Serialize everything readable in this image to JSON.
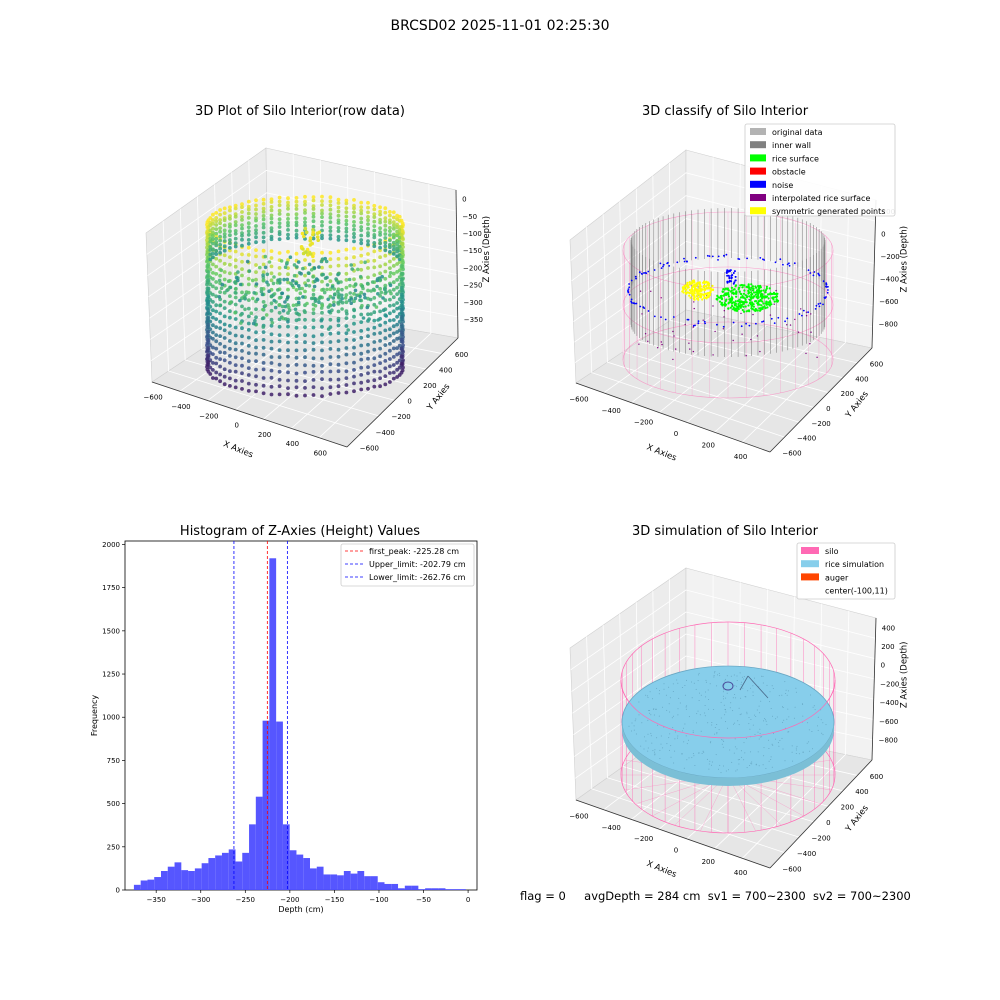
{
  "figure": {
    "suptitle": "BRCSD02 2025-11-01 02:25:30",
    "footer": {
      "flag": "flag = 0",
      "avg_depth": "avgDepth = 284 cm",
      "sv1": "sv1 = 700~2300",
      "sv2": "sv2 = 700~2300"
    }
  },
  "colors": {
    "original": "#b3b3b3",
    "inner_wall": "#808080",
    "rice_surface": "#00ff00",
    "obstacle": "#ff0000",
    "noise": "#0000ff",
    "interpolated": "#800080",
    "symmetric": "#ffff00",
    "silo": "#ff69b4",
    "rice_sim": "#87ceeb",
    "auger": "#ff4500",
    "hist_bar": "#4d4dff"
  },
  "chart_data": [
    {
      "type": "scatter",
      "subtype": "3d",
      "title": "3D Plot of Silo Interior(row data)",
      "xlabel": "X Axies",
      "ylabel": "Y Axies",
      "zlabel": "Z Axies (Depth)",
      "x_ticks": [
        "−600",
        "−400",
        "−200",
        "0",
        "200",
        "400",
        "600"
      ],
      "y_ticks": [
        "−600",
        "−400",
        "−200",
        "0",
        "200",
        "400",
        "600"
      ],
      "z_ticks": [
        "0",
        "−50",
        "−100",
        "−150",
        "−200",
        "−250",
        "−300",
        "−350"
      ],
      "xlim": [
        -650,
        650
      ],
      "ylim": [
        -650,
        650
      ],
      "zlim": [
        -380,
        10
      ],
      "colormap": "viridis"
    },
    {
      "type": "scatter",
      "subtype": "3d",
      "title": "3D classify of Silo Interior",
      "xlabel": "X Axies",
      "ylabel": "Y Axies",
      "zlabel": "Z Axies (Depth)",
      "x_ticks": [
        "−600",
        "−400",
        "−200",
        "0",
        "200",
        "400"
      ],
      "y_ticks": [
        "−600",
        "−400",
        "−200",
        "0",
        "200",
        "400",
        "600"
      ],
      "z_ticks": [
        "200",
        "0",
        "−200",
        "−400",
        "−600",
        "−800"
      ],
      "legend": [
        "original data",
        "inner wall",
        "rice surface",
        "obstacle",
        "noise",
        "interpolated rice surface",
        "symmetric generated points"
      ],
      "legend_position": "top-right"
    },
    {
      "type": "bar",
      "subtype": "histogram",
      "title": "Histogram of Z-Axies (Height) Values",
      "xlabel": "Depth (cm)",
      "ylabel": "Frequency",
      "xlim": [
        -385,
        10
      ],
      "ylim": [
        0,
        2020
      ],
      "x_ticks": [
        -350,
        -300,
        -250,
        -200,
        -150,
        -100,
        -50,
        0
      ],
      "y_ticks": [
        0,
        250,
        500,
        750,
        1000,
        1250,
        1500,
        1750,
        2000
      ],
      "bin_start": -375,
      "bin_width": 7.6,
      "values": [
        30,
        55,
        60,
        75,
        110,
        135,
        160,
        115,
        110,
        125,
        155,
        185,
        200,
        215,
        235,
        165,
        215,
        380,
        540,
        980,
        1920,
        975,
        380,
        230,
        205,
        185,
        125,
        135,
        90,
        90,
        85,
        110,
        95,
        110,
        80,
        80,
        45,
        35,
        35,
        10,
        25,
        25,
        5,
        10,
        10,
        10,
        5,
        5,
        5
      ],
      "vlines": [
        {
          "label": "first_peak: -225.28 cm",
          "x": -225.28,
          "color": "#ff0000"
        },
        {
          "label": "Upper_limit: -202.79 cm",
          "x": -202.79,
          "color": "#0000ff"
        },
        {
          "label": "Lower_limit: -262.76 cm",
          "x": -262.76,
          "color": "#0000ff"
        }
      ],
      "legend_position": "top-right"
    },
    {
      "type": "scatter",
      "subtype": "3d",
      "title": "3D simulation of Silo Interior",
      "xlabel": "X Axies",
      "ylabel": "Y Axies",
      "zlabel": "Z Axies (Depth)",
      "x_ticks": [
        "−600",
        "−400",
        "−200",
        "0",
        "200",
        "400"
      ],
      "y_ticks": [
        "−600",
        "−400",
        "−200",
        "0",
        "200",
        "400",
        "600"
      ],
      "z_ticks": [
        "400",
        "200",
        "0",
        "−200",
        "−400",
        "−600",
        "−800"
      ],
      "legend": [
        "silo",
        "rice simulation",
        "auger",
        "center(-100,11)"
      ],
      "legend_position": "top-right"
    }
  ]
}
